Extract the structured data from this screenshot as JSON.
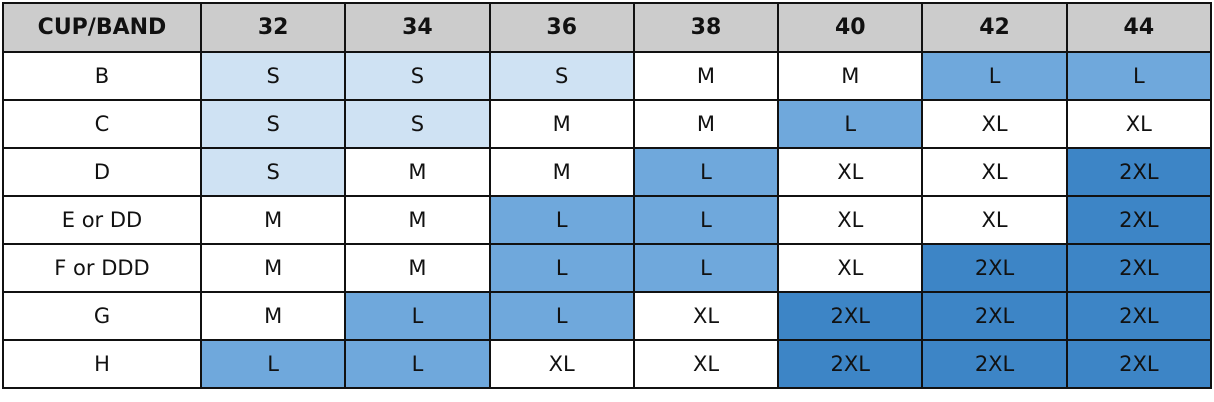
{
  "header": {
    "corner": "CUP/BAND",
    "bands": [
      "32",
      "34",
      "36",
      "38",
      "40",
      "42",
      "44"
    ]
  },
  "colors": {
    "header": "#cccccc",
    "S": "#cfe2f3",
    "M": "#ffffff",
    "L": "#6fa8dc",
    "XL": "#ffffff",
    "2XL": "#3d85c6"
  },
  "rows": [
    {
      "cup": "B",
      "sizes": [
        "S",
        "S",
        "S",
        "M",
        "M",
        "L",
        "L"
      ]
    },
    {
      "cup": "C",
      "sizes": [
        "S",
        "S",
        "M",
        "M",
        "L",
        "XL",
        "XL"
      ]
    },
    {
      "cup": "D",
      "sizes": [
        "S",
        "M",
        "M",
        "L",
        "XL",
        "XL",
        "2XL"
      ]
    },
    {
      "cup": "E or DD",
      "sizes": [
        "M",
        "M",
        "L",
        "L",
        "XL",
        "XL",
        "2XL"
      ]
    },
    {
      "cup": "F or DDD",
      "sizes": [
        "M",
        "M",
        "L",
        "L",
        "XL",
        "2XL",
        "2XL"
      ]
    },
    {
      "cup": "G",
      "sizes": [
        "M",
        "L",
        "L",
        "XL",
        "2XL",
        "2XL",
        "2XL"
      ]
    },
    {
      "cup": "H",
      "sizes": [
        "L",
        "L",
        "XL",
        "XL",
        "2XL",
        "2XL",
        "2XL"
      ]
    }
  ]
}
